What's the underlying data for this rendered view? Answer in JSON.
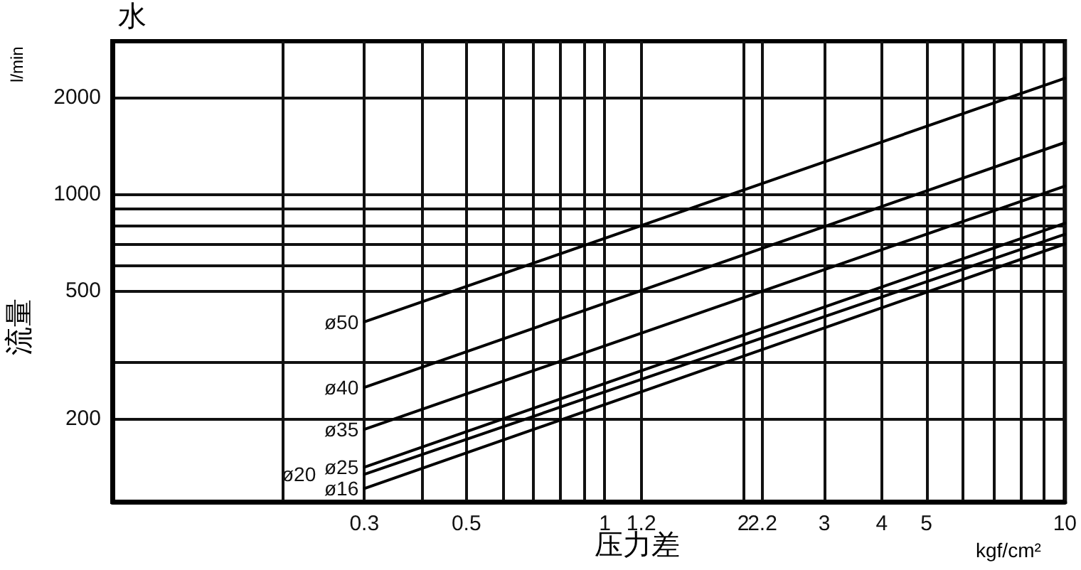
{
  "chart_data": {
    "type": "line",
    "title": "水",
    "xlabel": "压力差",
    "ylabel": "流量",
    "annotations": [
      "l/min",
      "kgf/cm²"
    ],
    "log": "xy",
    "grid": true,
    "legend": false,
    "marker": "none",
    "line_style": "solid",
    "xlim": [
      0.085,
      10
    ],
    "ylim": [
      110,
      3000
    ],
    "xticks": [
      {
        "value": 0.2,
        "label": null
      },
      0.3,
      {
        "value": 0.4,
        "label": null
      },
      0.5,
      {
        "value": 0.6,
        "label": null
      },
      {
        "value": 0.7,
        "label": null
      },
      {
        "value": 0.8,
        "label": null
      },
      {
        "value": 0.9,
        "label": null
      },
      1,
      1.2,
      2,
      2.2,
      3,
      4,
      5,
      {
        "value": 6,
        "label": null
      },
      {
        "value": 7,
        "label": null
      },
      {
        "value": 8,
        "label": null
      },
      {
        "value": 9,
        "label": null
      },
      10
    ],
    "yticks": [
      200,
      {
        "value": 300,
        "label": null
      },
      500,
      {
        "value": 600,
        "label": null
      },
      {
        "value": 700,
        "label": null
      },
      {
        "value": 800,
        "label": null
      },
      {
        "value": 900,
        "label": null
      },
      1000,
      2000
    ],
    "x": [
      0.3,
      10
    ],
    "series": [
      {
        "name": "ø50",
        "color": "#000000",
        "values": [
          400,
          2300
        ]
      },
      {
        "name": "ø40",
        "color": "#000000",
        "values": [
          250,
          1450
        ]
      },
      {
        "name": "ø35",
        "color": "#000000",
        "values": [
          185,
          1060
        ]
      },
      {
        "name": "ø25",
        "color": "#000000",
        "values": [
          141,
          812
        ]
      },
      {
        "name": "ø20",
        "color": "#000000",
        "values": [
          134,
          750
        ]
      },
      {
        "name": "ø16",
        "color": "#000000",
        "values": [
          121,
          700
        ]
      }
    ]
  }
}
